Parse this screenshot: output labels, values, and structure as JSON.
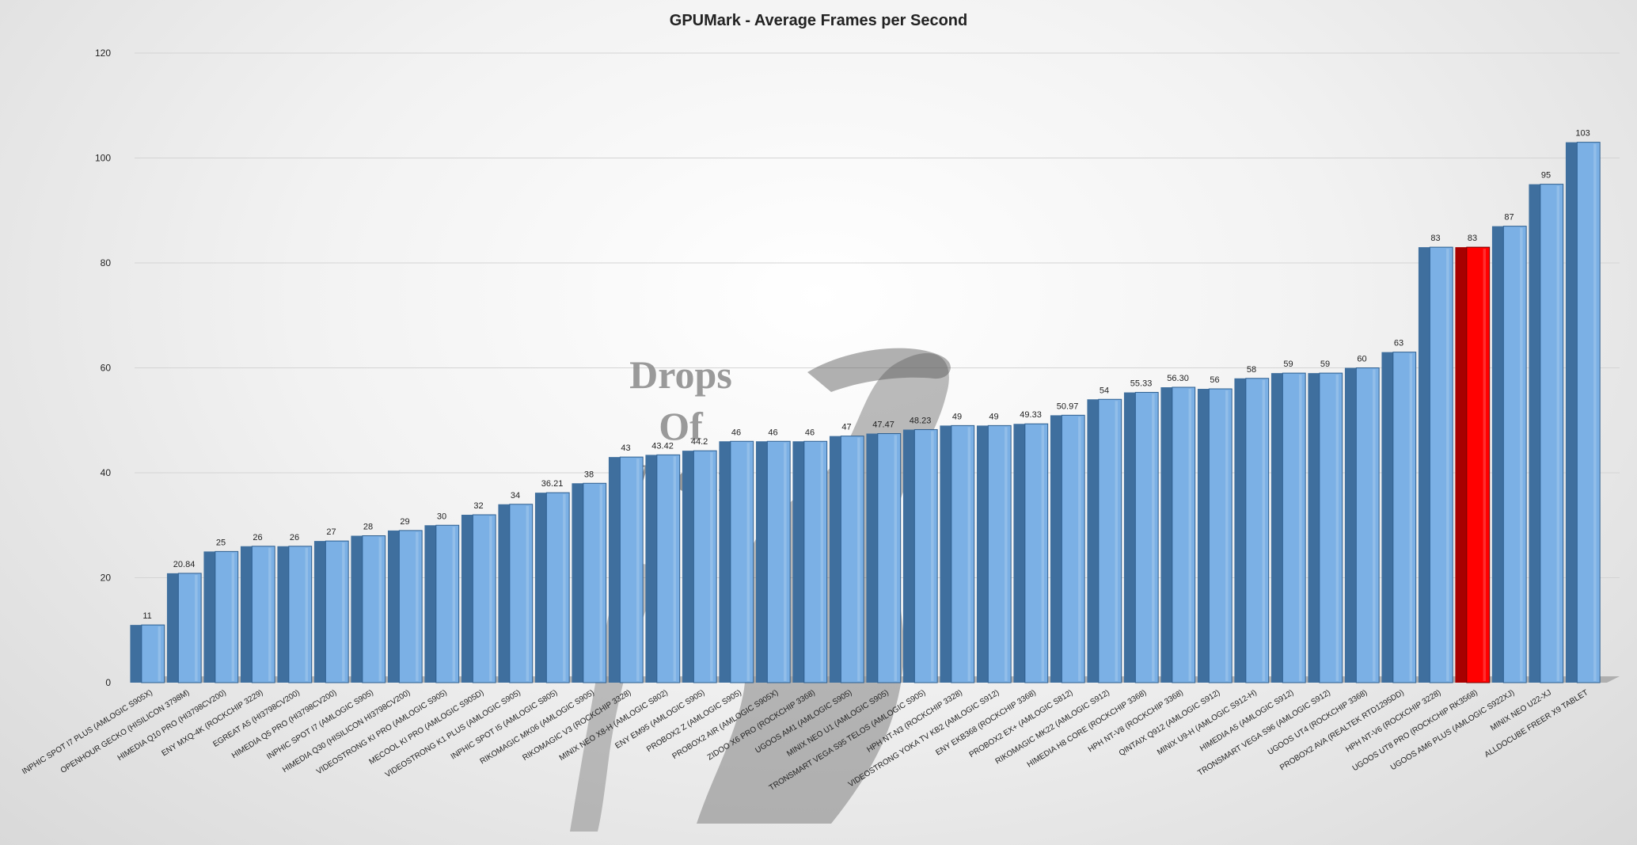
{
  "chart_data": {
    "type": "bar",
    "title": "GPUMark - Average Frames per Second",
    "xlabel": "",
    "ylabel": "",
    "ylim": [
      0,
      120
    ],
    "yticks": [
      0,
      20,
      40,
      60,
      80,
      100,
      120
    ],
    "grid": true,
    "legend": "none",
    "categories": [
      "INPHIC SPOT I7 PLUS (AMLOGIC S905X)",
      "OPENHOUR GECKO (HISILICON 3798M)",
      "HIMEDIA Q10 PRO (HI3798CV200)",
      "ENY MXQ-4K (ROCKCHIP 3229)",
      "EGREAT A5 (HI3798CV200)",
      "HIMEDIA Q5 PRO (HI3798CV200)",
      "INPHIC SPOT I7 (AMLOGIC S905)",
      "HIMEDIA Q30 (HISILICON HI3798CV200)",
      "VIDEOSTRONG KI PRO (AMLOGIC S905)",
      "MECOOL KI PRO (AMLOGIC S905D)",
      "VIDEOSTRONG K1 PLUS (AMLOGIC S905)",
      "INPHIC SPOT I5 (AMLOGIC S805)",
      "RIKOMAGIC MK06 (AMLOGIC S905)",
      "RIKOMAGIC V3 (ROCKCHIP 3328)",
      "MINIX NEO X8-H (AMLOGIC S802)",
      "ENY EM95 (AMLOGIC S905)",
      "PROBOX2 Z (AMLOGIC S905)",
      "PROBOX2 AIR (AMLOGIC S905X)",
      "ZIDOO X6 PRO (ROCKCHIP 3368)",
      "UGOOS AM1 (AMLOGIC S905)",
      "MINIX NEO U1 (AMLOGIC S905)",
      "TRONSMART VEGA S95 TELOS (AMLOGIC S905)",
      "HPH NT-N3 (ROCKCHIP 3328)",
      "VIDEOSTRONG YOKA TV KB2 (AMLOGIC S912)",
      "ENY EKB368 (ROCKCHIP 3368)",
      "PROBOX2 EX+ (AMLOGIC S812)",
      "RIKOMAGIC MK22 (AMLOGIC S912)",
      "HIMEDIA H8 CORE (ROCKCHIP 3368)",
      "HPH NT-V8 (ROCKCHIP 3368)",
      "QINTAIX Q912 (AMLOGIC S912)",
      "MINIX U9-H (AMLOGIC S912-H)",
      "HIMEDIA A5 (AMLOGIC S912)",
      "TRONSMART VEGA S96 (AMLOGIC S912)",
      "UGOOS UT4 (ROCKCHIP 3368)",
      "PROBOX2 AVA (REALTEK RTD1295DD)",
      "HPH NT-V6 (ROCKCHIP 3228)",
      "UGOOS UT8 PRO (ROCKCHIP RK3568)",
      "UGOOS AM6 PLUS (AMLOGIC S922XJ)",
      "MINIX NEO U22-XJ",
      "ALLDOCUBE FREER X9 TABLET"
    ],
    "values": [
      11,
      20.84,
      25,
      26,
      26,
      27,
      28,
      29,
      30,
      32,
      34,
      36.21,
      38,
      43,
      43.42,
      44.2,
      46,
      46,
      46,
      47,
      47.47,
      48.23,
      49,
      49,
      49.33,
      50.97,
      54,
      55.33,
      56.3,
      56,
      58,
      59,
      59,
      60,
      63,
      83,
      83,
      87,
      95,
      103
    ],
    "data_labels": [
      "11",
      "20.84",
      "25",
      "26",
      "26",
      "27",
      "28",
      "29",
      "30",
      "32",
      "34",
      "36.21",
      "38",
      "43",
      "43.42",
      "44.2",
      "46",
      "46",
      "46",
      "47",
      "47.47",
      "48.23",
      "49",
      "49",
      "49.33",
      "50.97",
      "54",
      "55.33",
      "56.30",
      "56",
      "58",
      "59",
      "59",
      "60",
      "63",
      "83",
      "83",
      "87",
      "95",
      "103"
    ],
    "highlight_index": 36,
    "colors": {
      "bar_front": "#7bb0e5",
      "bar_side": "#3f6f9e",
      "bar_top": "#a9cdf0",
      "bar_outline": "#2e5f90",
      "highlight_front": "#ff0000",
      "highlight_side": "#a80000",
      "highlight_top": "#ff5a5a",
      "grid": "#d4d4d4",
      "floor": "#9a9a9a"
    }
  },
  "watermark": {
    "lines": [
      "Drops",
      "Of",
      "Wisdom"
    ]
  }
}
